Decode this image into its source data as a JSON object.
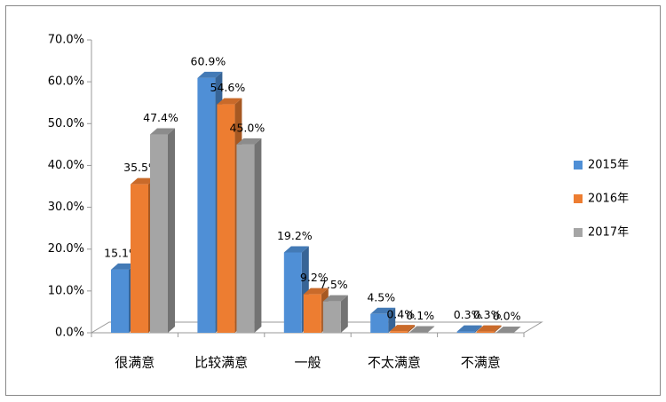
{
  "chart_data": {
    "type": "bar3d",
    "categories": [
      "很满意",
      "比较满意",
      "一般",
      "不太满意",
      "不满意"
    ],
    "series": [
      {
        "name": "2015年",
        "color": "#4f8fd6",
        "values": [
          15.1,
          60.9,
          19.2,
          4.5,
          0.3
        ],
        "value_labels": [
          "15.1%",
          "60.9%",
          "19.2%",
          "4.5%",
          "0.3%"
        ]
      },
      {
        "name": "2016年",
        "color": "#ed7d31",
        "values": [
          35.5,
          54.6,
          9.2,
          0.4,
          0.3
        ],
        "value_labels": [
          "35.5%",
          "54.6%",
          "9.2%",
          "0.4%",
          "0.3%"
        ]
      },
      {
        "name": "2017年",
        "color": "#a5a5a5",
        "values": [
          47.4,
          45.0,
          7.5,
          0.1,
          0.0
        ],
        "value_labels": [
          "47.4%",
          "45.0%",
          "7.5%",
          "0.1%",
          "0.0%"
        ]
      }
    ],
    "ylim": [
      0,
      70
    ],
    "yticks": [
      {
        "value": 0,
        "label": "0.0%"
      },
      {
        "value": 10,
        "label": "10.0%"
      },
      {
        "value": 20,
        "label": "20.0%"
      },
      {
        "value": 30,
        "label": "30.0%"
      },
      {
        "value": 40,
        "label": "40.0%"
      },
      {
        "value": 50,
        "label": "50.0%"
      },
      {
        "value": 60,
        "label": "60.0%"
      },
      {
        "value": 70,
        "label": "70.0%"
      }
    ],
    "legend": "right"
  }
}
